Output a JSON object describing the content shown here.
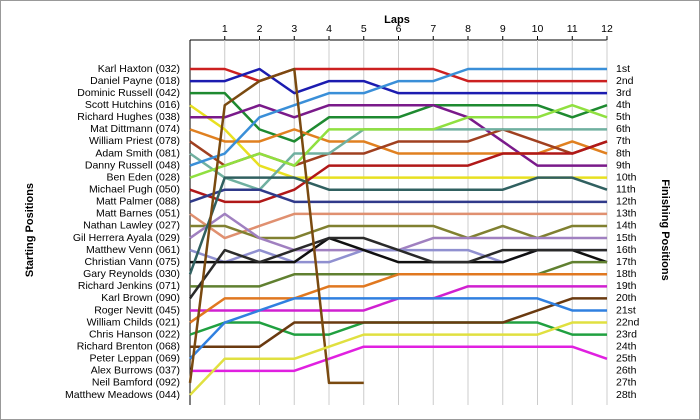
{
  "chart_data": {
    "type": "lap",
    "x_label": "Laps",
    "y_label": "Starting Positions",
    "y2_label": "Finishing Positions",
    "x": [
      0,
      1,
      2,
      3,
      4,
      5,
      6,
      7,
      8,
      9,
      10,
      11,
      12
    ],
    "xlim": [
      0,
      12
    ],
    "xticks": [
      1,
      2,
      3,
      4,
      5,
      6,
      7,
      8,
      9,
      10,
      11,
      12
    ],
    "ylim": [
      1,
      28
    ],
    "finish_labels": [
      "1st",
      "2nd",
      "3rd",
      "4th",
      "5th",
      "6th",
      "7th",
      "8th",
      "9th",
      "10th",
      "11th",
      "12th",
      "13th",
      "14th",
      "15th",
      "16th",
      "17th",
      "18th",
      "19th",
      "20th",
      "21st",
      "22nd",
      "23rd",
      "24th",
      "25th",
      "26th",
      "27th",
      "28th"
    ],
    "series": [
      {
        "name": "Karl Haxton (032)",
        "color": "#cc2020",
        "values": [
          1,
          1,
          2,
          1,
          1,
          1,
          1,
          1,
          2,
          2,
          2,
          2,
          2
        ]
      },
      {
        "name": "Daniel Payne (018)",
        "color": "#1c1cb0",
        "values": [
          2,
          2,
          1,
          3,
          2,
          2,
          3,
          3,
          3,
          3,
          3,
          3,
          3
        ]
      },
      {
        "name": "Dominic Russell (042)",
        "color": "#1e8a30",
        "values": [
          3,
          3,
          6,
          7,
          5,
          5,
          5,
          4,
          4,
          4,
          4,
          5,
          4
        ]
      },
      {
        "name": "Scott Hutchins (016)",
        "color": "#e8e020",
        "values": [
          4,
          6,
          9,
          10,
          10,
          10,
          10,
          10,
          10,
          10,
          10,
          10,
          10
        ]
      },
      {
        "name": "Richard Hughes (038)",
        "color": "#7a1a8a",
        "values": [
          5,
          5,
          4,
          5,
          4,
          4,
          4,
          4,
          5,
          7,
          9,
          9,
          9
        ]
      },
      {
        "name": "Mat Dittmann (074)",
        "color": "#e08020",
        "values": [
          6,
          7,
          7,
          6,
          7,
          7,
          8,
          8,
          8,
          8,
          8,
          7,
          8
        ]
      },
      {
        "name": "William Priest (078)",
        "color": "#a04020",
        "values": [
          7,
          9,
          8,
          9,
          8,
          8,
          7,
          7,
          7,
          6,
          7,
          8,
          7
        ]
      },
      {
        "name": "Adam Smith (081)",
        "color": "#70b0a0",
        "values": [
          8,
          10,
          11,
          8,
          8,
          6,
          6,
          6,
          6,
          6,
          6,
          6,
          6
        ]
      },
      {
        "name": "Danny Russell (048)",
        "color": "#3a8fd8",
        "values": [
          9,
          8,
          5,
          4,
          3,
          3,
          2,
          2,
          1,
          1,
          1,
          1,
          1
        ]
      },
      {
        "name": "Ben Eden (028)",
        "color": "#90e040",
        "values": [
          10,
          9,
          8,
          9,
          6,
          6,
          6,
          6,
          5,
          5,
          5,
          4,
          5
        ]
      },
      {
        "name": "Michael Pugh (050)",
        "color": "#b01818",
        "values": [
          11,
          12,
          12,
          11,
          9,
          9,
          9,
          9,
          9,
          8,
          8,
          8,
          7
        ]
      },
      {
        "name": "Matt Palmer (088)",
        "color": "#303a8a",
        "values": [
          12,
          11,
          11,
          12,
          12,
          12,
          12,
          12,
          12,
          12,
          12,
          12,
          12
        ]
      },
      {
        "name": "Matt Barnes (051)",
        "color": "#e09070",
        "values": [
          13,
          15,
          14,
          13,
          13,
          13,
          13,
          13,
          13,
          13,
          13,
          13,
          13
        ]
      },
      {
        "name": "Nathan Lawley (027)",
        "color": "#808030",
        "values": [
          14,
          14,
          15,
          15,
          14,
          14,
          14,
          14,
          15,
          14,
          15,
          14,
          14
        ]
      },
      {
        "name": "Gil Herrera Ayala (029)",
        "color": "#a080c0",
        "values": [
          15,
          13,
          15,
          16,
          16,
          16,
          16,
          15,
          15,
          15,
          15,
          15,
          15
        ]
      },
      {
        "name": "Matthew Venn (061)",
        "color": "#9090d0",
        "values": [
          16,
          17,
          16,
          17,
          17,
          16,
          16,
          16,
          16,
          17,
          16,
          16,
          16
        ]
      },
      {
        "name": "Christian Vann (075)",
        "color": "#101010",
        "values": [
          17,
          17,
          17,
          17,
          15,
          16,
          17,
          17,
          17,
          17,
          16,
          16,
          17
        ]
      },
      {
        "name": "Gary Reynolds (030)",
        "color": "#306060",
        "values": [
          18,
          10,
          10,
          10,
          11,
          11,
          11,
          11,
          11,
          11,
          10,
          10,
          11
        ]
      },
      {
        "name": "Richard Jenkins (071)",
        "color": "#608030",
        "values": [
          19,
          19,
          19,
          18,
          18,
          18,
          18,
          18,
          18,
          18,
          18,
          17,
          17
        ]
      },
      {
        "name": "Karl Brown (090)",
        "color": "#2a2a2a",
        "values": [
          20,
          16,
          17,
          16,
          15,
          15,
          16,
          17,
          17,
          16,
          16,
          16,
          16
        ]
      },
      {
        "name": "Roger Nevitt (045)",
        "color": "#d020d0",
        "values": [
          21,
          21,
          21,
          21,
          21,
          21,
          20,
          20,
          19,
          19,
          19,
          19,
          19
        ]
      },
      {
        "name": "William Childs (021)",
        "color": "#e07820",
        "values": [
          22,
          20,
          20,
          20,
          19,
          19,
          18,
          18,
          18,
          18,
          18,
          18,
          18
        ]
      },
      {
        "name": "Chris Hanson (022)",
        "color": "#20a040",
        "values": [
          23,
          22,
          22,
          23,
          23,
          22,
          22,
          22,
          22,
          22,
          22,
          23,
          23
        ]
      },
      {
        "name": "Richard Brenton (068)",
        "color": "#6a3a10",
        "values": [
          24,
          24,
          24,
          22,
          22,
          22,
          22,
          22,
          22,
          22,
          21,
          20,
          20
        ]
      },
      {
        "name": "Peter Leppan (069)",
        "color": "#3080e0",
        "values": [
          25,
          22,
          21,
          20,
          20,
          20,
          20,
          20,
          20,
          20,
          20,
          21,
          21
        ]
      },
      {
        "name": "Alex Burrows (037)",
        "color": "#e020e0",
        "values": [
          26,
          26,
          26,
          26,
          25,
          24,
          24,
          24,
          24,
          24,
          24,
          24,
          25
        ]
      },
      {
        "name": "Neil Bamford (092)",
        "color": "#7a4a10",
        "values": [
          27,
          4,
          2,
          1,
          27,
          27,
          null,
          null,
          null,
          null,
          null,
          null,
          null
        ]
      },
      {
        "name": "Matthew Meadows (044)",
        "color": "#e0e040",
        "values": [
          28,
          25,
          25,
          25,
          24,
          23,
          23,
          23,
          23,
          23,
          23,
          22,
          22
        ]
      }
    ]
  }
}
